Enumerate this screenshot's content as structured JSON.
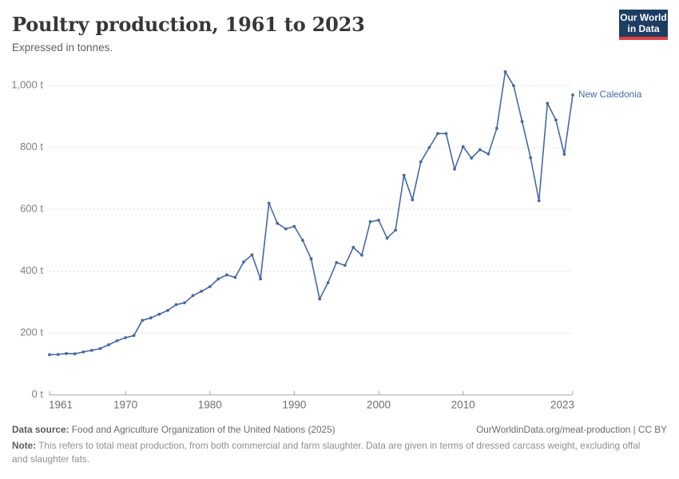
{
  "header": {
    "title": "Poultry production, 1961 to 2023",
    "subtitle": "Expressed in tonnes.",
    "logo": {
      "line1": "Our World",
      "line2": "in Data",
      "bg": "#1d3d63",
      "accent": "#dc3d43"
    }
  },
  "chart_data": {
    "type": "line",
    "title": "Poultry production, 1961 to 2023",
    "unit": "tonnes",
    "grid": "dashed-horizontal",
    "legend_position": "end-of-line-label",
    "xlim": [
      1961,
      2023
    ],
    "ylim": [
      0,
      1000
    ],
    "x_ticks": [
      1961,
      1970,
      1980,
      1990,
      2000,
      2010,
      2023
    ],
    "x_tick_labels": [
      "1961",
      "1970",
      "1980",
      "1990",
      "2000",
      "2010",
      "2023"
    ],
    "y_ticks": [
      0,
      200,
      400,
      600,
      800,
      1000
    ],
    "y_tick_labels": [
      "0 t",
      "200 t",
      "400 t",
      "600 t",
      "800 t",
      "1,000 t"
    ],
    "line_color": "#4669a5",
    "series": [
      {
        "name": "New Caledonia",
        "color": "#4669a5",
        "x": [
          1961,
          1962,
          1963,
          1964,
          1965,
          1966,
          1967,
          1968,
          1969,
          1970,
          1971,
          1972,
          1973,
          1974,
          1975,
          1976,
          1977,
          1978,
          1979,
          1980,
          1981,
          1982,
          1983,
          1984,
          1985,
          1986,
          1987,
          1988,
          1989,
          1990,
          1991,
          1992,
          1993,
          1994,
          1995,
          1996,
          1997,
          1998,
          1999,
          2000,
          2001,
          2002,
          2003,
          2004,
          2005,
          2006,
          2007,
          2008,
          2009,
          2010,
          2011,
          2012,
          2013,
          2014,
          2015,
          2016,
          2017,
          2018,
          2019,
          2020,
          2021,
          2022,
          2023
        ],
        "values": [
          130,
          131,
          134,
          133,
          139,
          144,
          150,
          162,
          175,
          185,
          192,
          241,
          249,
          261,
          273,
          292,
          298,
          321,
          335,
          350,
          375,
          388,
          380,
          430,
          453,
          375,
          620,
          555,
          537,
          545,
          500,
          440,
          310,
          363,
          428,
          419,
          477,
          452,
          560,
          565,
          507,
          533,
          710,
          631,
          754,
          800,
          845,
          845,
          730,
          803,
          766,
          793,
          779,
          862,
          1045,
          1000,
          884,
          767,
          628,
          943,
          889,
          778,
          970
        ]
      }
    ]
  },
  "footer": {
    "datasource_label": "Data source:",
    "datasource_text": " Food and Agriculture Organization of the United Nations (2025)",
    "link_text": "OurWorldinData.org/meat-production | CC BY",
    "note_label": "Note:",
    "note_text": " This refers to total meat production, from both commercial and farm slaughter. Data are given in terms of dressed carcass weight, excluding offal and slaughter fats."
  }
}
